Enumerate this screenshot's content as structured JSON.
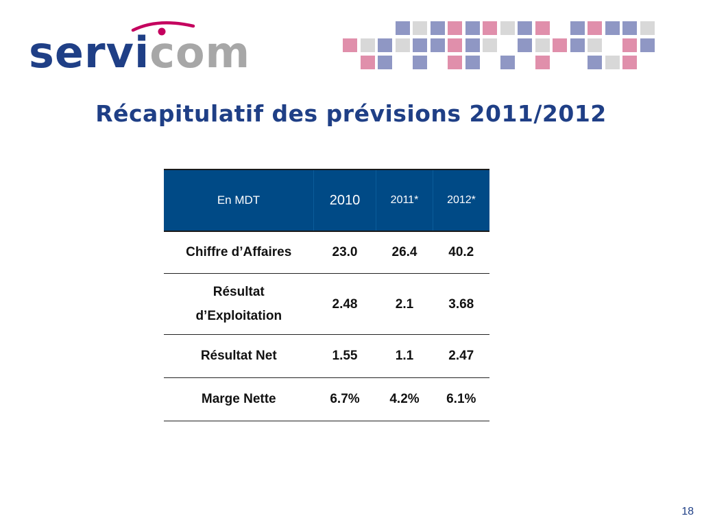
{
  "logo": {
    "part1": "servi",
    "part2": "com"
  },
  "colors": {
    "brand_blue": "#1f3f86",
    "header_blue": "#004a86",
    "logo_grey": "#a7a7a7",
    "logo_swoosh": "#c4005e",
    "mosaic_blue": "#8f97c4",
    "mosaic_pink": "#e08fab",
    "mosaic_grey": "#d8d8d8"
  },
  "title": "Récapitulatif des prévisions 2011/2012",
  "table": {
    "headers": [
      "En MDT",
      "2010",
      "2011*",
      "2012*"
    ],
    "rows": [
      {
        "label": "Chiffre d’Affaires",
        "values": [
          "23.0",
          "26.4",
          "40.2"
        ]
      },
      {
        "label": "Résultat d’Exploitation",
        "values": [
          "2.48",
          "2.1",
          "3.68"
        ]
      },
      {
        "label": "Résultat Net",
        "values": [
          "1.55",
          "1.1",
          "2.47"
        ]
      },
      {
        "label": "Marge Nette",
        "values": [
          "6.7%",
          "4.2%",
          "6.1%"
        ]
      }
    ]
  },
  "page_number": "18"
}
